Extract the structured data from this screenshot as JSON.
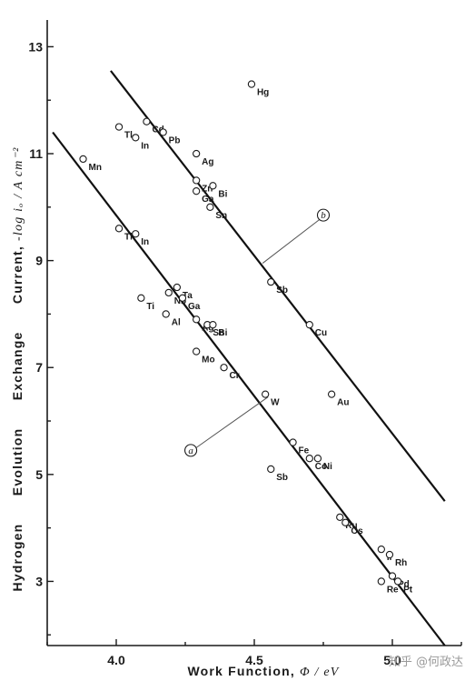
{
  "chart_data": {
    "type": "scatter",
    "title": "",
    "xlabel": "Work Function, Φ / eV",
    "ylabel_words": [
      "Hydrogen",
      "Evolution",
      "Exchange",
      "Current,"
    ],
    "ylabel_math": "-log iₒ / A cm⁻²",
    "xlim": [
      3.75,
      5.25
    ],
    "ylim": [
      1.8,
      13.5
    ],
    "xticks": [
      {
        "value": 4.0,
        "label": "4.0"
      },
      {
        "value": 4.5,
        "label": "4.5"
      },
      {
        "value": 5.0,
        "label": "5.0"
      }
    ],
    "xticks_minor": [
      3.75,
      4.25,
      4.75,
      5.25
    ],
    "yticks": [
      {
        "value": 3,
        "label": "3"
      },
      {
        "value": 5,
        "label": "5"
      },
      {
        "value": 7,
        "label": "7"
      },
      {
        "value": 9,
        "label": "9"
      },
      {
        "value": 11,
        "label": "11"
      },
      {
        "value": 13,
        "label": "13"
      }
    ],
    "yticks_minor": [
      2,
      4,
      6,
      8,
      10,
      12
    ],
    "grid": false,
    "fit_lines": [
      {
        "name": "a",
        "x": [
          3.77,
          5.19
        ],
        "y": [
          11.4,
          1.8
        ]
      },
      {
        "name": "b",
        "x": [
          3.98,
          5.19
        ],
        "y": [
          12.55,
          4.5
        ]
      }
    ],
    "points": [
      {
        "x": 3.88,
        "y": 10.9,
        "label": "Mn"
      },
      {
        "x": 4.01,
        "y": 11.5,
        "label": "Tl"
      },
      {
        "x": 4.11,
        "y": 11.6,
        "label": "Cd"
      },
      {
        "x": 4.07,
        "y": 11.3,
        "label": "In"
      },
      {
        "x": 4.17,
        "y": 11.4,
        "label": "Pb"
      },
      {
        "x": 4.29,
        "y": 11.0,
        "label": "Ag"
      },
      {
        "x": 4.29,
        "y": 10.5,
        "label": "Zn"
      },
      {
        "x": 4.35,
        "y": 10.4,
        "label": "Bi"
      },
      {
        "x": 4.29,
        "y": 10.3,
        "label": "Ga"
      },
      {
        "x": 4.34,
        "y": 10.0,
        "label": "Sn"
      },
      {
        "x": 4.49,
        "y": 12.3,
        "label": "Hg"
      },
      {
        "x": 4.56,
        "y": 8.6,
        "label": "Sb"
      },
      {
        "x": 4.7,
        "y": 7.8,
        "label": "Cu"
      },
      {
        "x": 4.01,
        "y": 9.6,
        "label": "Tl"
      },
      {
        "x": 4.07,
        "y": 9.5,
        "label": "In"
      },
      {
        "x": 4.22,
        "y": 8.5,
        "label": "Ta"
      },
      {
        "x": 4.19,
        "y": 8.4,
        "label": "Nb"
      },
      {
        "x": 4.09,
        "y": 8.3,
        "label": "Ti"
      },
      {
        "x": 4.24,
        "y": 8.3,
        "label": "Ga"
      },
      {
        "x": 4.18,
        "y": 8.0,
        "label": "Al"
      },
      {
        "x": 4.29,
        "y": 7.9,
        "label": "Ag"
      },
      {
        "x": 4.33,
        "y": 7.8,
        "label": "Sn"
      },
      {
        "x": 4.35,
        "y": 7.8,
        "label": "Bi"
      },
      {
        "x": 4.29,
        "y": 7.3,
        "label": "Mo"
      },
      {
        "x": 4.39,
        "y": 7.0,
        "label": "Cr"
      },
      {
        "x": 4.54,
        "y": 6.5,
        "label": "W"
      },
      {
        "x": 4.78,
        "y": 6.5,
        "label": "Au"
      },
      {
        "x": 4.64,
        "y": 5.6,
        "label": "Fe"
      },
      {
        "x": 4.56,
        "y": 5.1,
        "label": "Sb"
      },
      {
        "x": 4.7,
        "y": 5.3,
        "label": "Co"
      },
      {
        "x": 4.73,
        "y": 5.3,
        "label": "Ni"
      },
      {
        "x": 4.81,
        "y": 4.2,
        "label": "Ru"
      },
      {
        "x": 4.83,
        "y": 4.1,
        "label": "Os"
      },
      {
        "x": 4.96,
        "y": 3.6,
        "label": "Ir"
      },
      {
        "x": 4.99,
        "y": 3.5,
        "label": "Rh"
      },
      {
        "x": 5.0,
        "y": 3.1,
        "label": "Pd"
      },
      {
        "x": 4.96,
        "y": 3.0,
        "label": "Re"
      },
      {
        "x": 5.02,
        "y": 3.0,
        "label": "Pt"
      }
    ],
    "callouts": [
      {
        "label": "a",
        "x": 4.27,
        "y": 5.45,
        "to_x": 4.55,
        "to_y": 6.45
      },
      {
        "label": "b",
        "x": 4.75,
        "y": 9.85,
        "to_x": 4.53,
        "to_y": 8.95
      }
    ]
  },
  "watermark": {
    "text": "知乎 @何政达"
  }
}
